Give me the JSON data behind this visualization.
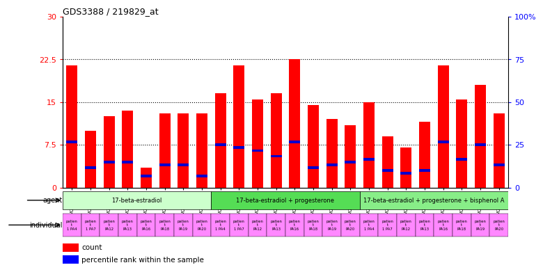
{
  "title": "GDS3388 / 219829_at",
  "gsm_ids": [
    "GSM259339",
    "GSM259345",
    "GSM259359",
    "GSM259365",
    "GSM259377",
    "GSM259386",
    "GSM259392",
    "GSM259395",
    "GSM259341",
    "GSM259346",
    "GSM259360",
    "GSM259367",
    "GSM259378",
    "GSM259387",
    "GSM259393",
    "GSM259396",
    "GSM259342",
    "GSM259349",
    "GSM259361",
    "GSM259368",
    "GSM259379",
    "GSM259388",
    "GSM259394",
    "GSM259397"
  ],
  "count_values": [
    21.5,
    10.0,
    12.5,
    13.5,
    3.5,
    13.0,
    13.0,
    13.0,
    16.5,
    21.5,
    15.5,
    16.5,
    22.5,
    14.5,
    12.0,
    11.0,
    15.0,
    9.0,
    7.0,
    11.5,
    21.5,
    15.5,
    18.0,
    13.0
  ],
  "percentile_values": [
    8.0,
    3.5,
    4.5,
    4.5,
    2.0,
    4.0,
    4.0,
    2.0,
    7.5,
    7.0,
    6.5,
    5.5,
    8.0,
    3.5,
    4.0,
    4.5,
    5.0,
    3.0,
    2.5,
    3.0,
    8.0,
    5.0,
    7.5,
    4.0
  ],
  "agent_groups": [
    {
      "label": "17-beta-estradiol",
      "start": 0,
      "end": 8,
      "color": "#ccffcc"
    },
    {
      "label": "17-beta-estradiol + progesterone",
      "start": 8,
      "end": 16,
      "color": "#55dd55"
    },
    {
      "label": "17-beta-estradiol + progesterone + bisphenol A",
      "start": 16,
      "end": 24,
      "color": "#88ee88"
    }
  ],
  "individual_sublabels": [
    "1 PA4",
    "1 PA7",
    "PA12",
    "PA13",
    "PA16",
    "PA18",
    "PA19",
    "PA20",
    "1 PA4",
    "1 PA7",
    "PA12",
    "PA13",
    "PA16",
    "PA18",
    "PA19",
    "PA20",
    "1 PA4",
    "1 PA7",
    "PA12",
    "PA13",
    "PA16",
    "PA18",
    "PA19",
    "PA20"
  ],
  "ylim_left": [
    0,
    30
  ],
  "ylim_right": [
    0,
    100
  ],
  "yticks_left": [
    0,
    7.5,
    15,
    22.5,
    30
  ],
  "yticks_right": [
    0,
    25,
    50,
    75,
    100
  ],
  "bar_color_red": "#ff0000",
  "bar_color_blue": "#0000cc",
  "bar_width": 0.6,
  "background_color": "#ffffff",
  "individual_bg_color": "#ff88ff",
  "dotted_line_values": [
    7.5,
    15.0,
    22.5
  ],
  "blue_bar_height": 0.45
}
